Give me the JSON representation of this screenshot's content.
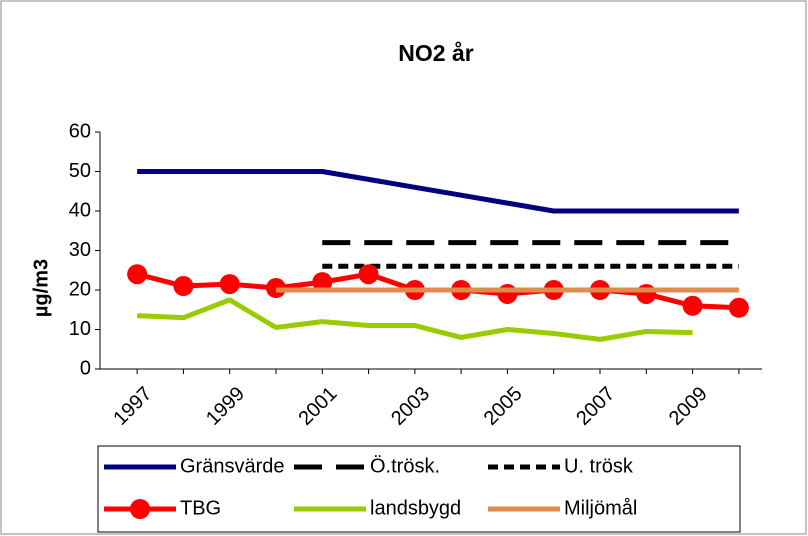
{
  "chart_data": {
    "type": "line",
    "title": "NO2 år",
    "y_label": "µg/m3",
    "categories": [
      "1997",
      null,
      "1999",
      null,
      "2001",
      null,
      "2003",
      null,
      "2005",
      null,
      "2007",
      null,
      "2009",
      null
    ],
    "ylim": [
      0,
      60
    ],
    "yticks": [
      0,
      10,
      20,
      30,
      40,
      50,
      60
    ],
    "grid": false,
    "legend": "bottom",
    "series": [
      {
        "name": "Gränsvärde",
        "color": "#000080",
        "line_style": "solid",
        "values": [
          50,
          50,
          50,
          50,
          50,
          48,
          46,
          44,
          42,
          40,
          40,
          40,
          40,
          40
        ]
      },
      {
        "name": "Ö.trösk.",
        "color": "#000000",
        "line_style": "long-dash",
        "values": [
          null,
          null,
          null,
          null,
          32,
          32,
          32,
          32,
          32,
          32,
          32,
          32,
          32,
          32
        ]
      },
      {
        "name": "U. trösk",
        "color": "#000000",
        "line_style": "dash",
        "values": [
          null,
          null,
          null,
          null,
          26,
          26,
          26,
          26,
          26,
          26,
          26,
          26,
          26,
          26
        ]
      },
      {
        "name": "TBG",
        "color": "#ff0000",
        "line_style": "solid",
        "marker": "circle",
        "values": [
          24,
          21,
          21.5,
          20.5,
          22,
          24,
          20,
          20,
          19,
          20,
          20,
          19,
          16,
          15.5
        ]
      },
      {
        "name": "landsbygd",
        "color": "#99cc00",
        "line_style": "solid",
        "values": [
          13.5,
          13,
          17.5,
          10.5,
          12,
          11,
          11,
          8,
          10,
          9,
          7.5,
          9.5,
          9.2,
          null
        ]
      },
      {
        "name": "Miljömål",
        "color": "#e08a4c",
        "line_style": "solid",
        "values": [
          null,
          null,
          null,
          20,
          20,
          20,
          20,
          20,
          20,
          20,
          20,
          20,
          20,
          20
        ]
      }
    ]
  }
}
